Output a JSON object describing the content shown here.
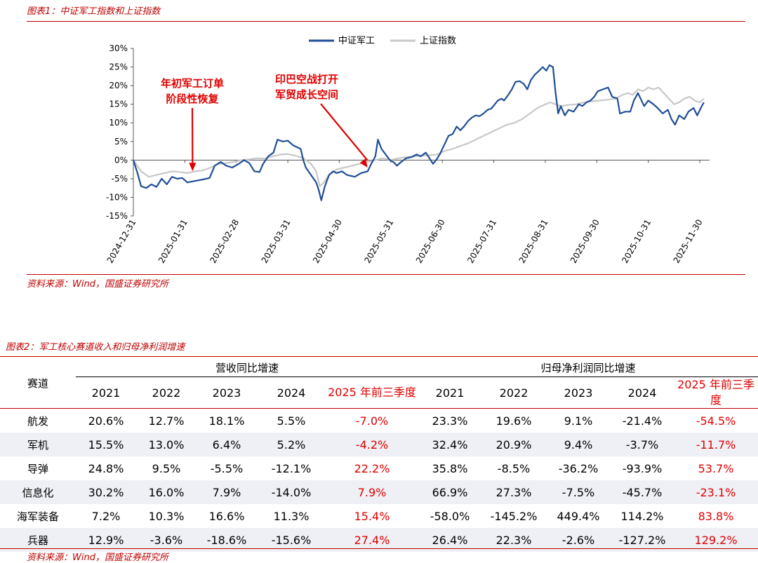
{
  "figure1": {
    "title": "图表1：中证军工指数和上证指数",
    "source": "资料来源：Wind，国盛证券研究所"
  },
  "chart_data": {
    "type": "line",
    "title": "中证军工指数和上证指数",
    "ylabel": "",
    "xlabel": "",
    "ylim": [
      -15,
      30
    ],
    "yticks": [
      -15,
      -10,
      -5,
      0,
      5,
      10,
      15,
      20,
      25,
      30
    ],
    "ytick_labels": [
      "-15%",
      "-10%",
      "-5%",
      "0%",
      "5%",
      "10%",
      "15%",
      "20%",
      "25%",
      "30%"
    ],
    "x_tick_labels": [
      "2024-12-31",
      "2025-01-31",
      "2025-02-28",
      "2025-03-31",
      "2025-04-30",
      "2025-05-31",
      "2025-06-30",
      "2025-07-31",
      "2025-08-31",
      "2025-09-30",
      "2025-10-31",
      "2025-11-30"
    ],
    "x_range": [
      0,
      11
    ],
    "legend_position": "top",
    "series": [
      {
        "name": "中证军工",
        "color": "#1f4e96",
        "points": [
          [
            0,
            0
          ],
          [
            0.08,
            -3.5
          ],
          [
            0.15,
            -7
          ],
          [
            0.25,
            -7.5
          ],
          [
            0.35,
            -6.5
          ],
          [
            0.45,
            -7.2
          ],
          [
            0.55,
            -5
          ],
          [
            0.65,
            -6.5
          ],
          [
            0.75,
            -4.5
          ],
          [
            0.85,
            -5
          ],
          [
            0.95,
            -4.8
          ],
          [
            1.05,
            -6
          ],
          [
            1.2,
            -5.6
          ],
          [
            1.35,
            -5.2
          ],
          [
            1.48,
            -4.8
          ],
          [
            1.58,
            -1.5
          ],
          [
            1.7,
            -0.5
          ],
          [
            1.8,
            -1.5
          ],
          [
            1.92,
            -2
          ],
          [
            2.05,
            -1
          ],
          [
            2.15,
            0
          ],
          [
            2.25,
            -0.8
          ],
          [
            2.35,
            -3
          ],
          [
            2.45,
            -3.2
          ],
          [
            2.52,
            -1
          ],
          [
            2.62,
            1
          ],
          [
            2.72,
            2
          ],
          [
            2.8,
            5.5
          ],
          [
            2.9,
            5
          ],
          [
            3.0,
            5.2
          ],
          [
            3.1,
            4
          ],
          [
            3.25,
            3
          ],
          [
            3.3,
            0
          ],
          [
            3.35,
            -2
          ],
          [
            3.45,
            -4
          ],
          [
            3.55,
            -6
          ],
          [
            3.6,
            -8
          ],
          [
            3.65,
            -10.8
          ],
          [
            3.72,
            -7
          ],
          [
            3.8,
            -4
          ],
          [
            3.88,
            -3
          ],
          [
            3.95,
            -3.5
          ],
          [
            4.05,
            -3
          ],
          [
            4.15,
            -4
          ],
          [
            4.3,
            -4.5
          ],
          [
            4.42,
            -3.5
          ],
          [
            4.55,
            -3
          ],
          [
            4.62,
            -1
          ],
          [
            4.7,
            1
          ],
          [
            4.75,
            5.5
          ],
          [
            4.82,
            3
          ],
          [
            4.9,
            1.5
          ],
          [
            4.98,
            0
          ],
          [
            5.05,
            -0.5
          ],
          [
            5.12,
            -1.5
          ],
          [
            5.2,
            -0.5
          ],
          [
            5.3,
            0.5
          ],
          [
            5.4,
            0.8
          ],
          [
            5.5,
            1.5
          ],
          [
            5.58,
            1
          ],
          [
            5.68,
            2
          ],
          [
            5.75,
            0.5
          ],
          [
            5.82,
            -1
          ],
          [
            5.88,
            0
          ],
          [
            5.95,
            1.5
          ],
          [
            6.0,
            3
          ],
          [
            6.07,
            5
          ],
          [
            6.12,
            6.5
          ],
          [
            6.2,
            7
          ],
          [
            6.28,
            9
          ],
          [
            6.35,
            8
          ],
          [
            6.42,
            9
          ],
          [
            6.5,
            10.5
          ],
          [
            6.58,
            11.5
          ],
          [
            6.65,
            12
          ],
          [
            6.72,
            11.8
          ],
          [
            6.8,
            12.5
          ],
          [
            6.88,
            13.5
          ],
          [
            6.95,
            13.8
          ],
          [
            7.02,
            15
          ],
          [
            7.08,
            16
          ],
          [
            7.15,
            16.5
          ],
          [
            7.2,
            16
          ],
          [
            7.28,
            17.5
          ],
          [
            7.35,
            19
          ],
          [
            7.42,
            21
          ],
          [
            7.5,
            21.2
          ],
          [
            7.58,
            20.5
          ],
          [
            7.65,
            19
          ],
          [
            7.72,
            21.5
          ],
          [
            7.8,
            23
          ],
          [
            7.88,
            24
          ],
          [
            7.95,
            25
          ],
          [
            8.02,
            24
          ],
          [
            8.08,
            25.5
          ],
          [
            8.15,
            25
          ],
          [
            8.2,
            18
          ],
          [
            8.25,
            12.5
          ],
          [
            8.3,
            14.5
          ],
          [
            8.38,
            12
          ],
          [
            8.45,
            13.5
          ],
          [
            8.55,
            13
          ],
          [
            8.65,
            15
          ],
          [
            8.72,
            14.5
          ],
          [
            8.8,
            15.5
          ],
          [
            8.88,
            16
          ],
          [
            8.95,
            17
          ],
          [
            9.02,
            18.5
          ],
          [
            9.12,
            19
          ],
          [
            9.22,
            19.5
          ],
          [
            9.3,
            17
          ],
          [
            9.4,
            16.5
          ],
          [
            9.45,
            12.5
          ],
          [
            9.55,
            13
          ],
          [
            9.65,
            13
          ],
          [
            9.72,
            16
          ],
          [
            9.8,
            18
          ],
          [
            9.85,
            16.5
          ],
          [
            9.92,
            14.5
          ],
          [
            10.0,
            16
          ],
          [
            10.1,
            15
          ],
          [
            10.18,
            14
          ],
          [
            10.28,
            12.5
          ],
          [
            10.38,
            13.5
          ],
          [
            10.45,
            11
          ],
          [
            10.52,
            9.5
          ],
          [
            10.6,
            12
          ],
          [
            10.7,
            11
          ],
          [
            10.78,
            13
          ],
          [
            10.88,
            14
          ],
          [
            10.95,
            12
          ],
          [
            11.02,
            14
          ],
          [
            11.08,
            15.5
          ]
        ]
      },
      {
        "name": "上证指数",
        "color": "#c8c8c8",
        "points": [
          [
            0,
            0
          ],
          [
            0.15,
            -3
          ],
          [
            0.3,
            -4.5
          ],
          [
            0.45,
            -4
          ],
          [
            0.6,
            -3.5
          ],
          [
            0.75,
            -3
          ],
          [
            0.9,
            -3.2
          ],
          [
            1.05,
            -3.5
          ],
          [
            1.2,
            -3
          ],
          [
            1.35,
            -2.8
          ],
          [
            1.5,
            -2
          ],
          [
            1.65,
            -1
          ],
          [
            1.8,
            -0.8
          ],
          [
            1.95,
            -0.5
          ],
          [
            2.1,
            0
          ],
          [
            2.25,
            0.2
          ],
          [
            2.4,
            0.5
          ],
          [
            2.55,
            0.4
          ],
          [
            2.7,
            1
          ],
          [
            2.85,
            1.5
          ],
          [
            3.0,
            1.6
          ],
          [
            3.15,
            1.2
          ],
          [
            3.3,
            0.5
          ],
          [
            3.45,
            -1
          ],
          [
            3.55,
            -3
          ],
          [
            3.62,
            -7
          ],
          [
            3.7,
            -6
          ],
          [
            3.8,
            -4
          ],
          [
            3.95,
            -2.5
          ],
          [
            4.1,
            -2
          ],
          [
            4.25,
            -1.5
          ],
          [
            4.4,
            -1
          ],
          [
            4.55,
            -0.5
          ],
          [
            4.7,
            0
          ],
          [
            4.85,
            0.5
          ],
          [
            5.0,
            0
          ],
          [
            5.15,
            0.5
          ],
          [
            5.3,
            0.8
          ],
          [
            5.45,
            1
          ],
          [
            5.6,
            1.2
          ],
          [
            5.75,
            1.3
          ],
          [
            5.9,
            1.5
          ],
          [
            6.05,
            2.5
          ],
          [
            6.2,
            3
          ],
          [
            6.35,
            3.8
          ],
          [
            6.5,
            4.5
          ],
          [
            6.65,
            5.5
          ],
          [
            6.8,
            6.5
          ],
          [
            6.95,
            7.5
          ],
          [
            7.1,
            8.5
          ],
          [
            7.25,
            9.5
          ],
          [
            7.4,
            10
          ],
          [
            7.55,
            11
          ],
          [
            7.7,
            12.5
          ],
          [
            7.85,
            14
          ],
          [
            8.0,
            15
          ],
          [
            8.1,
            15.5
          ],
          [
            8.2,
            15
          ],
          [
            8.3,
            14.5
          ],
          [
            8.45,
            14.8
          ],
          [
            8.6,
            15
          ],
          [
            8.75,
            15.5
          ],
          [
            8.9,
            15.8
          ],
          [
            9.05,
            16
          ],
          [
            9.2,
            16.2
          ],
          [
            9.35,
            16.5
          ],
          [
            9.5,
            17.5
          ],
          [
            9.6,
            18
          ],
          [
            9.7,
            17.5
          ],
          [
            9.8,
            19
          ],
          [
            9.9,
            18.5
          ],
          [
            10.0,
            19.5
          ],
          [
            10.1,
            19
          ],
          [
            10.2,
            19.5
          ],
          [
            10.3,
            18
          ],
          [
            10.4,
            16.5
          ],
          [
            10.5,
            15
          ],
          [
            10.6,
            15.5
          ],
          [
            10.7,
            16.5
          ],
          [
            10.8,
            17
          ],
          [
            10.9,
            16
          ],
          [
            11.0,
            15.5
          ],
          [
            11.08,
            16.5
          ]
        ]
      }
    ],
    "annotations": [
      {
        "text_lines": [
          "年初军工订单",
          "阶段性恢复"
        ],
        "color": "#e00000",
        "arrow_to": [
          1.15,
          -3
        ]
      },
      {
        "text_lines": [
          "印巴空战打开",
          "军贸成长空间"
        ],
        "color": "#e00000",
        "arrow_to": [
          4.55,
          -2
        ]
      }
    ]
  },
  "figure2": {
    "title": "图表2：军工核心赛道收入和归母净利润增速",
    "source": "资料来源：Wind，国盛证券研究所",
    "col_label": "赛道",
    "groups": [
      "营收同比增速",
      "归母净利润同比增速"
    ],
    "years": [
      "2021",
      "2022",
      "2023",
      "2024",
      "2025 年前三季度"
    ],
    "rows": [
      {
        "name": "航发",
        "revenue": [
          "20.6%",
          "12.7%",
          "18.1%",
          "5.5%",
          "-7.0%"
        ],
        "profit": [
          "23.3%",
          "19.6%",
          "9.1%",
          "-21.4%",
          "-54.5%"
        ]
      },
      {
        "name": "军机",
        "revenue": [
          "15.5%",
          "13.0%",
          "6.4%",
          "5.2%",
          "-4.2%"
        ],
        "profit": [
          "32.4%",
          "20.9%",
          "9.4%",
          "-3.7%",
          "-11.7%"
        ]
      },
      {
        "name": "导弹",
        "revenue": [
          "24.8%",
          "9.5%",
          "-5.5%",
          "-12.1%",
          "22.2%"
        ],
        "profit": [
          "35.8%",
          "-8.5%",
          "-36.2%",
          "-93.9%",
          "53.7%"
        ]
      },
      {
        "name": "信息化",
        "revenue": [
          "30.2%",
          "16.0%",
          "7.9%",
          "-14.0%",
          "7.9%"
        ],
        "profit": [
          "66.9%",
          "27.3%",
          "-7.5%",
          "-45.7%",
          "-23.1%"
        ]
      },
      {
        "name": "海军装备",
        "revenue": [
          "7.2%",
          "10.3%",
          "16.6%",
          "11.3%",
          "15.4%"
        ],
        "profit": [
          "-58.0%",
          "-145.2%",
          "449.4%",
          "114.2%",
          "83.8%"
        ]
      },
      {
        "name": "兵器",
        "revenue": [
          "12.9%",
          "-3.6%",
          "-18.6%",
          "-15.6%",
          "27.4%"
        ],
        "profit": [
          "26.4%",
          "22.3%",
          "-2.6%",
          "-127.2%",
          "129.2%"
        ]
      }
    ]
  }
}
